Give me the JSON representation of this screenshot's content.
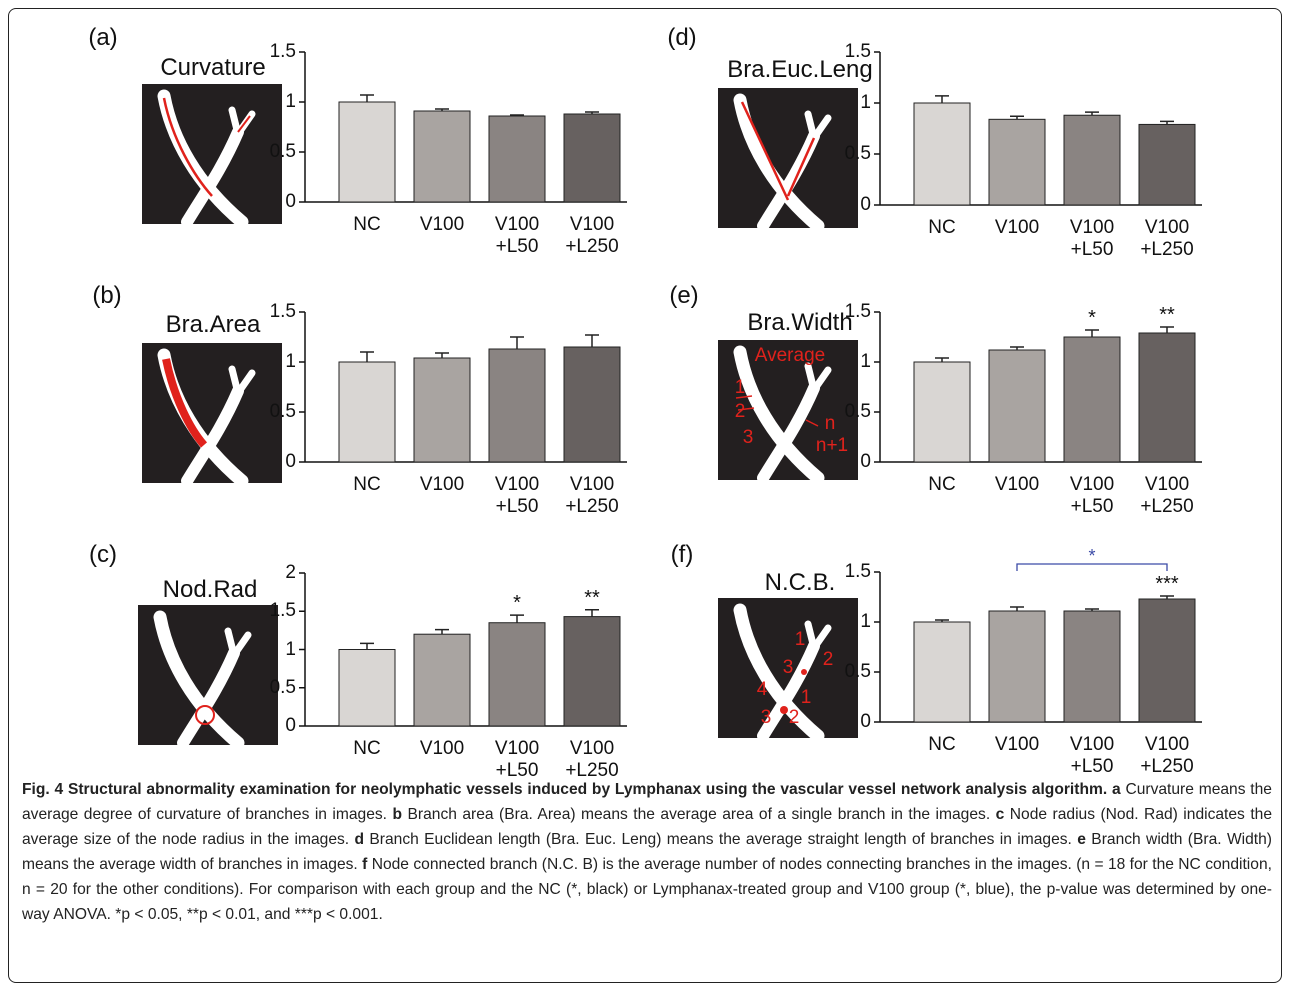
{
  "chart_data": [
    {
      "type": "bar",
      "label": "(a)",
      "title": "Curvature",
      "categories": [
        "NC",
        "V100",
        "V100\n+L50",
        "V100\n+L250"
      ],
      "values": [
        1.0,
        0.91,
        0.86,
        0.88
      ],
      "errors": [
        0.07,
        0.02,
        0.01,
        0.02
      ],
      "colors": [
        "#d9d6d3",
        "#a9a4a1",
        "#8a8482",
        "#676160"
      ],
      "ylim": [
        0,
        1.5
      ],
      "yticks": [
        0,
        0.5,
        1,
        1.5
      ]
    },
    {
      "type": "bar",
      "label": "(b)",
      "title": "Bra.Area",
      "categories": [
        "NC",
        "V100",
        "V100\n+L50",
        "V100\n+L250"
      ],
      "values": [
        1.0,
        1.04,
        1.13,
        1.15
      ],
      "errors": [
        0.1,
        0.05,
        0.12,
        0.12
      ],
      "colors": [
        "#d9d6d3",
        "#a9a4a1",
        "#8a8482",
        "#676160"
      ],
      "ylim": [
        0,
        1.5
      ],
      "yticks": [
        0,
        0.5,
        1,
        1.5
      ]
    },
    {
      "type": "bar",
      "label": "(c)",
      "title": "Nod.Rad",
      "categories": [
        "NC",
        "V100",
        "V100\n+L50",
        "V100\n+L250"
      ],
      "values": [
        1.0,
        1.2,
        1.35,
        1.43
      ],
      "errors": [
        0.08,
        0.06,
        0.1,
        0.09
      ],
      "annotations": [
        null,
        null,
        "*",
        "**"
      ],
      "colors": [
        "#d9d6d3",
        "#a9a4a1",
        "#8a8482",
        "#676160"
      ],
      "ylim": [
        0,
        2
      ],
      "yticks": [
        0,
        0.5,
        1,
        1.5,
        2
      ]
    },
    {
      "type": "bar",
      "label": "(d)",
      "title": "Bra.Euc.Leng",
      "categories": [
        "NC",
        "V100",
        "V100\n+L50",
        "V100\n+L250"
      ],
      "values": [
        1.0,
        0.84,
        0.88,
        0.79
      ],
      "errors": [
        0.07,
        0.03,
        0.03,
        0.03
      ],
      "colors": [
        "#d9d6d3",
        "#a9a4a1",
        "#8a8482",
        "#676160"
      ],
      "ylim": [
        0,
        1.5
      ],
      "yticks": [
        0,
        0.5,
        1,
        1.5
      ]
    },
    {
      "type": "bar",
      "label": "(e)",
      "title": "Bra.Width",
      "inset_labels": [
        "Average",
        "1",
        "2",
        "3",
        "n",
        "n+1"
      ],
      "categories": [
        "NC",
        "V100",
        "V100\n+L50",
        "V100\n+L250"
      ],
      "values": [
        1.0,
        1.12,
        1.25,
        1.29
      ],
      "errors": [
        0.04,
        0.03,
        0.07,
        0.06
      ],
      "annotations": [
        null,
        null,
        "*",
        "**"
      ],
      "colors": [
        "#d9d6d3",
        "#a9a4a1",
        "#8a8482",
        "#676160"
      ],
      "ylim": [
        0,
        1.5
      ],
      "yticks": [
        0,
        0.5,
        1,
        1.5
      ]
    },
    {
      "type": "bar",
      "label": "(f)",
      "title": "N.C.B.",
      "inset_labels": [
        "1",
        "3",
        "2",
        "4",
        "1",
        "3",
        "2"
      ],
      "categories": [
        "NC",
        "V100",
        "V100\n+L50",
        "V100\n+L250"
      ],
      "values": [
        1.0,
        1.11,
        1.11,
        1.23
      ],
      "errors": [
        0.02,
        0.04,
        0.02,
        0.03
      ],
      "annotations": [
        null,
        null,
        null,
        "***"
      ],
      "bracket": {
        "label": "*",
        "color": "#3b4aa6",
        "between": [
          "V100",
          "V100\n+L250"
        ]
      },
      "colors": [
        "#d9d6d3",
        "#a9a4a1",
        "#8a8482",
        "#676160"
      ],
      "ylim": [
        0,
        1.5
      ],
      "yticks": [
        0,
        0.5,
        1,
        1.5
      ]
    }
  ],
  "caption": {
    "title": "Fig. 4 Structural abnormality examination for neolymphatic vessels induced by Lymphanax using the vascular vessel network analysis algorithm.",
    "items": [
      {
        "letter": "a",
        "text": "Curvature means the average degree of curvature of branches in images."
      },
      {
        "letter": "b",
        "text": "Branch area (Bra. Area) means the average area of a single branch in the images."
      },
      {
        "letter": "c",
        "text": "Node radius (Nod. Rad) indicates the average size of the node radius in the images."
      },
      {
        "letter": "d",
        "text": "Branch Euclidean length (Bra. Euc. Leng) means the average straight length of branches in images."
      },
      {
        "letter": "e",
        "text": "Branch width (Bra. Width) means the average width of branches in images."
      },
      {
        "letter": "f",
        "text": "Node connected branch (N.C. B) is the average number of nodes connecting branches in the images."
      }
    ],
    "note": "(n = 18 for the NC condition, n = 20 for the other conditions). For comparison with each group and the NC (*, black) or Lymphanax-treated group and V100 group (*, blue), the p-value was determined by one-way ANOVA. *p < 0.05, **p < 0.01, and ***p < 0.001."
  }
}
